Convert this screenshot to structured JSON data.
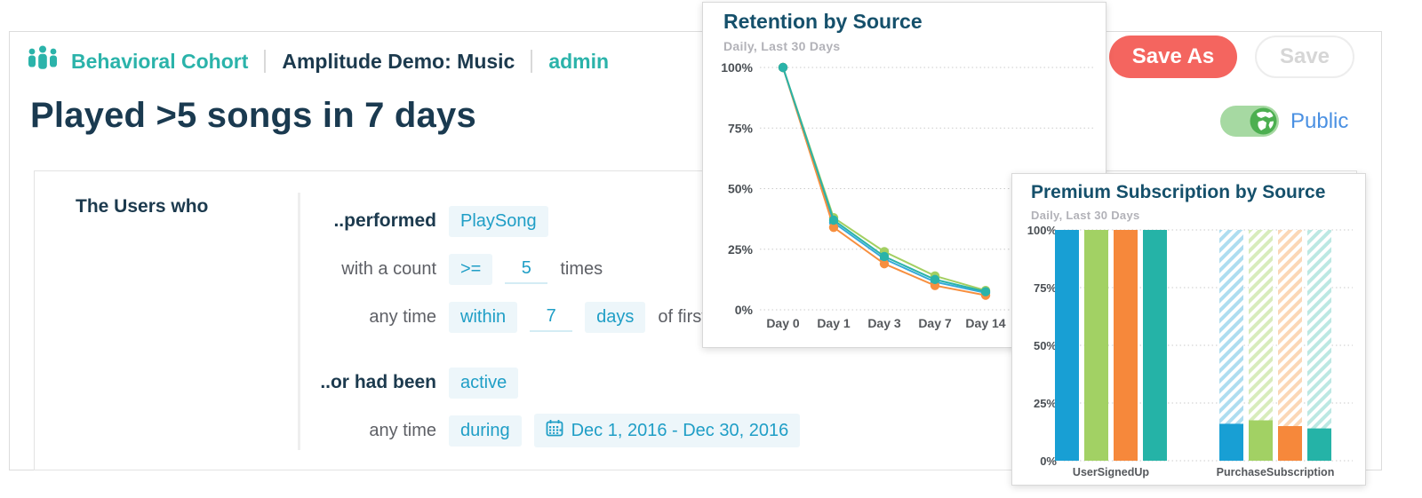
{
  "header": {
    "app_name": "Behavioral Cohort",
    "project": "Amplitude Demo: Music",
    "owner": "admin",
    "save_as_label": "Save As",
    "save_label": "Save",
    "visibility_label": "Public"
  },
  "cohort": {
    "title": "Played >5 songs in 7 days",
    "subject_label": "The Users who",
    "rules": {
      "performed_label": "..performed",
      "performed_event": "PlaySong",
      "count_label": "with a count",
      "count_operator": ">=",
      "count_value": "5",
      "count_suffix": "times",
      "window_anytime_label": "any time",
      "window_type": "within",
      "window_value": "7",
      "window_unit": "days",
      "window_suffix": "of first use",
      "or_label": "..or had been",
      "or_state": "active",
      "during_anytime_label": "any time",
      "during_type": "during",
      "during_range": "Dec 1, 2016 - Dec 30, 2016"
    }
  },
  "colors": {
    "brand_teal": "#2bb3aa",
    "dark_navy": "#1c3a4e",
    "chip_bg": "#edf6fa",
    "chip_text": "#1f9ec6",
    "save_as_coral": "#f4655f",
    "public_blue": "#4a90e2",
    "toggle_green": "#a6d9a2"
  },
  "chart_data": [
    {
      "type": "line",
      "title": "Retention by Source",
      "subtitle": "Daily, Last 30 Days",
      "x": [
        "Day 0",
        "Day 1",
        "Day 3",
        "Day 7",
        "Day 14"
      ],
      "yticks": [
        "0%",
        "25%",
        "50%",
        "75%",
        "100%"
      ],
      "ylim": [
        0,
        100
      ],
      "grid": "dotted-horizontal",
      "legend": "none-visible",
      "series": [
        {
          "name": "green",
          "color": "#a3cf62",
          "values": [
            100,
            38,
            24,
            14,
            8
          ]
        },
        {
          "name": "blue",
          "color": "#36a9da",
          "values": [
            100,
            36,
            21,
            11.5,
            7
          ]
        },
        {
          "name": "orange",
          "color": "#f78f3f",
          "values": [
            100,
            34,
            19,
            10,
            6
          ]
        },
        {
          "name": "teal",
          "color": "#2ab3a9",
          "values": [
            100,
            37,
            22,
            12.5,
            7.5
          ]
        }
      ]
    },
    {
      "type": "bar",
      "title": "Premium Subscription by Source",
      "subtitle": "Daily, Last 30 Days",
      "categories": [
        "UserSignedUp",
        "PurchaseSubscription"
      ],
      "yticks": [
        "0%",
        "25%",
        "50%",
        "75%",
        "100%"
      ],
      "ylim": [
        0,
        100
      ],
      "grid": "dotted-horizontal",
      "hatched_groups": [
        1
      ],
      "hatched_total": 100,
      "series": [
        {
          "name": "blue",
          "color": "#189fd4",
          "light": "#aeddf0",
          "values": [
            100,
            16
          ]
        },
        {
          "name": "green",
          "color": "#a2d164",
          "light": "#d8ecbc",
          "values": [
            100,
            17.5
          ]
        },
        {
          "name": "orange",
          "color": "#f6883b",
          "light": "#fbd7b6",
          "values": [
            100,
            15
          ]
        },
        {
          "name": "teal",
          "color": "#25b3a7",
          "light": "#bce8e3",
          "values": [
            100,
            14
          ]
        }
      ]
    }
  ]
}
